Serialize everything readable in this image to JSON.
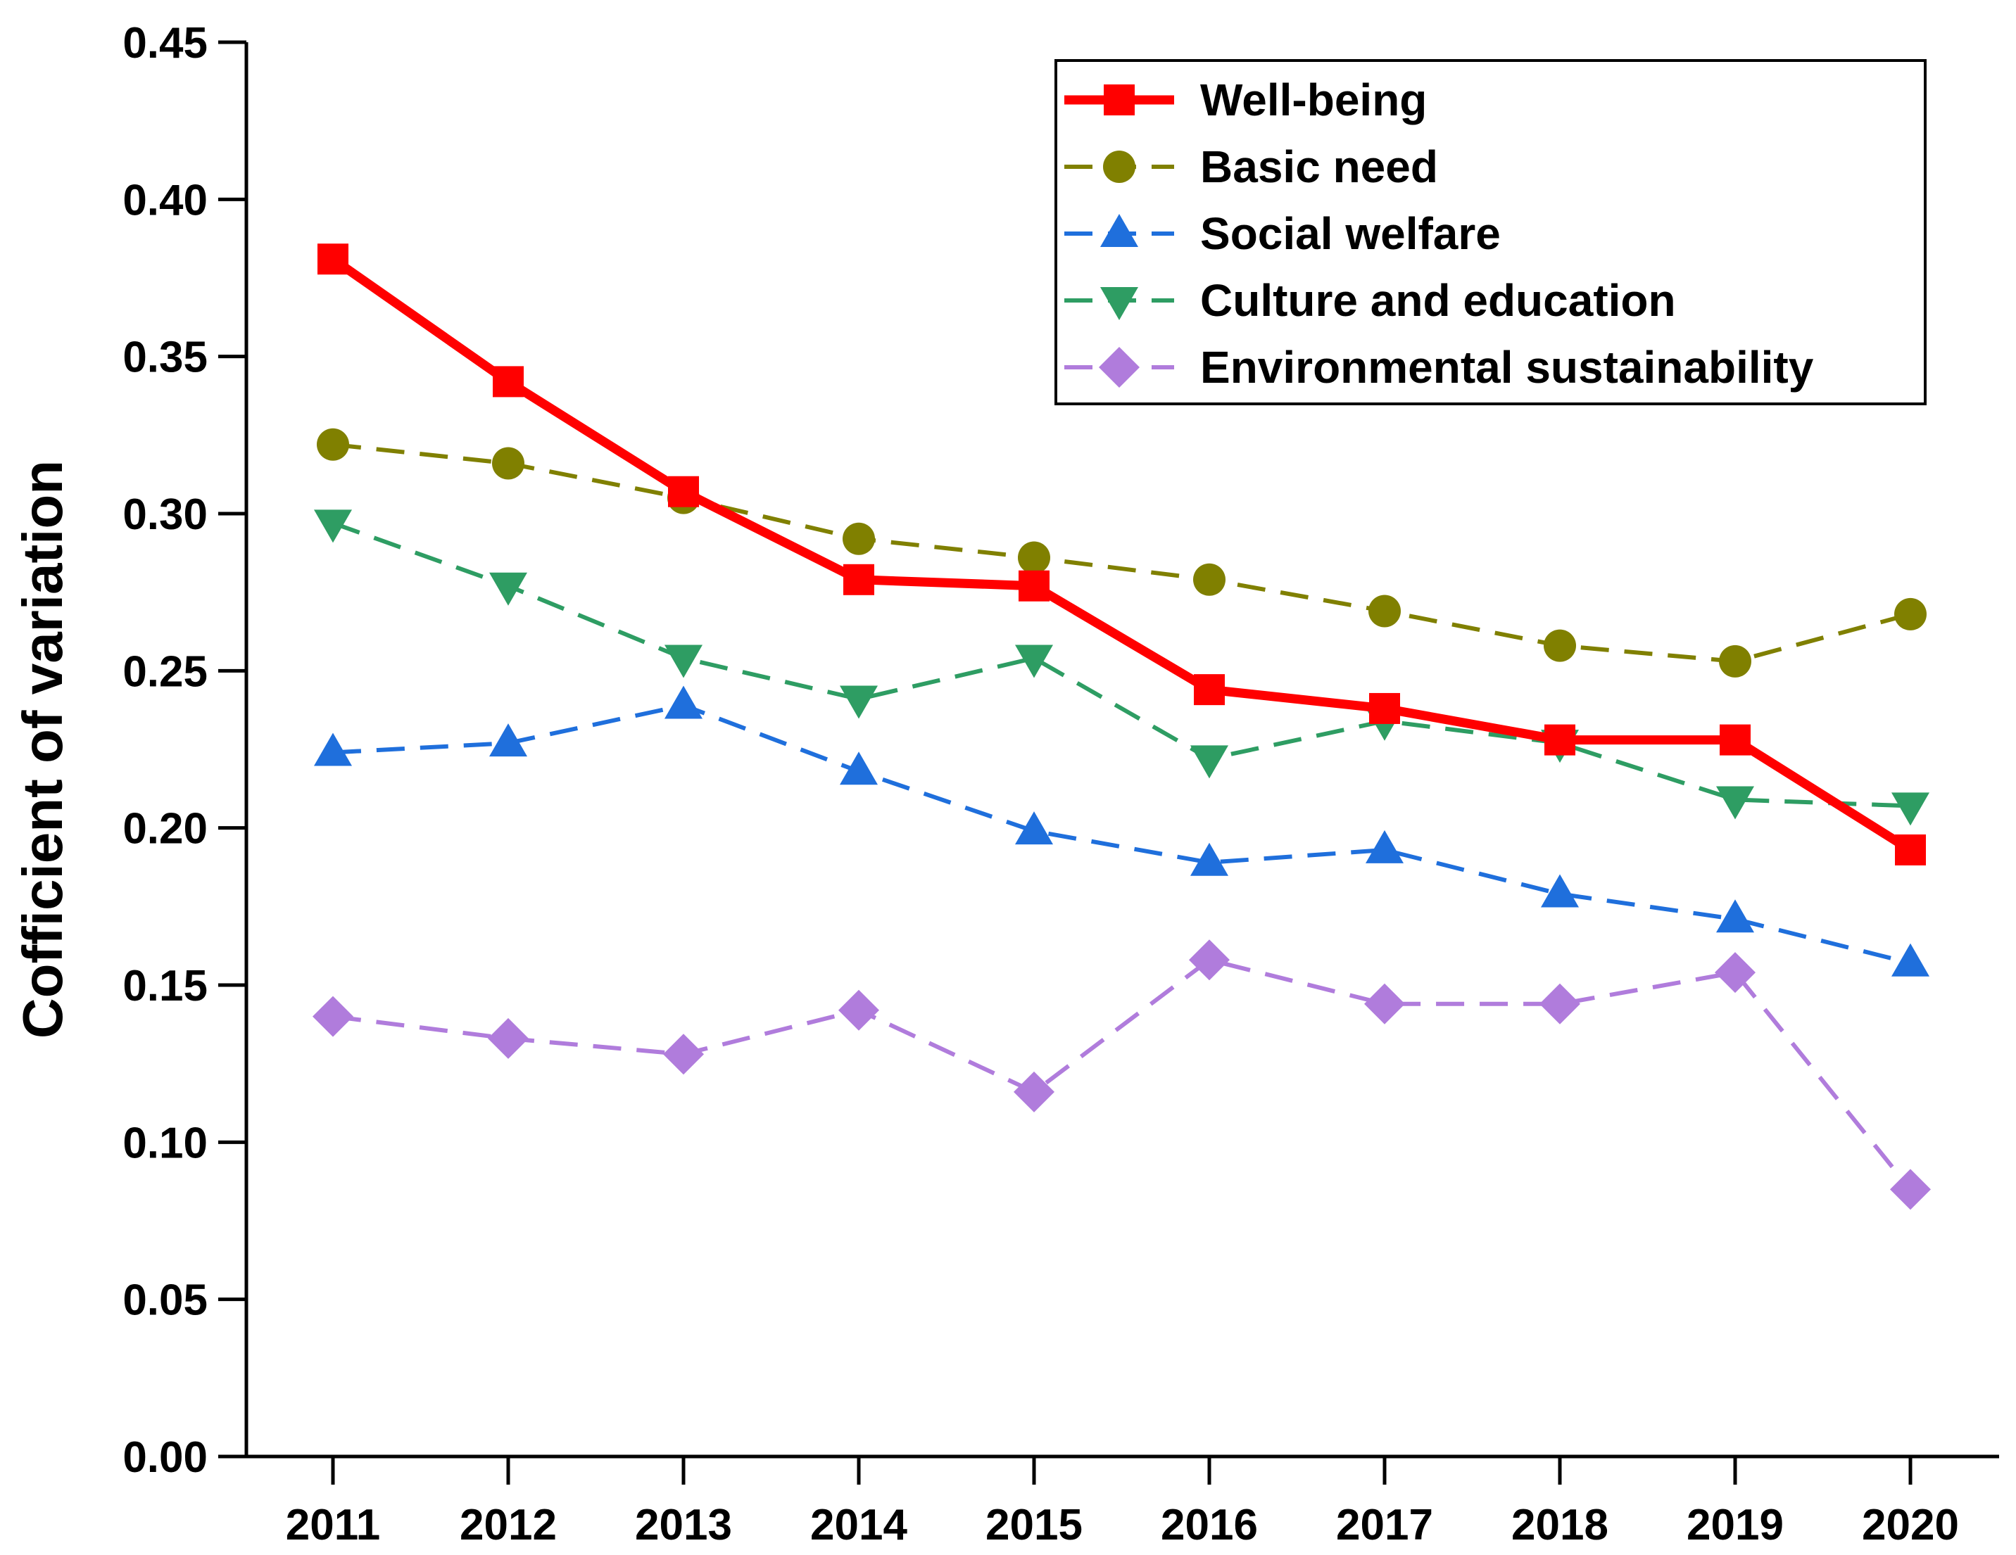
{
  "chart_data": {
    "type": "line",
    "title": "",
    "xlabel": "",
    "ylabel": "Cofficient of variation",
    "x": [
      "2011",
      "2012",
      "2013",
      "2014",
      "2015",
      "2016",
      "2017",
      "2018",
      "2019",
      "2020"
    ],
    "ylim": [
      0.0,
      0.45
    ],
    "yticks": [
      "0.00",
      "0.05",
      "0.10",
      "0.15",
      "0.20",
      "0.25",
      "0.30",
      "0.35",
      "0.40",
      "0.45"
    ],
    "grid": false,
    "legend_position": "top-right",
    "series": [
      {
        "name": "Well-being",
        "color": "#ff0000",
        "line": "solid",
        "marker": "square",
        "values": [
          0.381,
          0.342,
          0.307,
          0.279,
          0.277,
          0.244,
          0.238,
          0.228,
          0.228,
          0.193
        ]
      },
      {
        "name": "Basic need",
        "color": "#808000",
        "line": "dashed",
        "marker": "circle",
        "values": [
          0.322,
          0.316,
          0.305,
          0.292,
          0.286,
          0.279,
          0.269,
          0.258,
          0.253,
          0.268
        ]
      },
      {
        "name": "Social welfare",
        "color": "#1f6fdc",
        "line": "dashed",
        "marker": "triangle-up",
        "values": [
          0.224,
          0.227,
          0.239,
          0.218,
          0.199,
          0.189,
          0.193,
          0.179,
          0.171,
          0.157
        ]
      },
      {
        "name": "Culture and education",
        "color": "#2e9d63",
        "line": "dashed",
        "marker": "triangle-down",
        "values": [
          0.297,
          0.277,
          0.254,
          0.241,
          0.254,
          0.222,
          0.234,
          0.227,
          0.209,
          0.207
        ]
      },
      {
        "name": "Environmental sustainability",
        "color": "#b07cdc",
        "line": "dashed",
        "marker": "diamond",
        "values": [
          0.14,
          0.133,
          0.128,
          0.142,
          0.116,
          0.158,
          0.144,
          0.144,
          0.154,
          0.085
        ]
      }
    ]
  }
}
